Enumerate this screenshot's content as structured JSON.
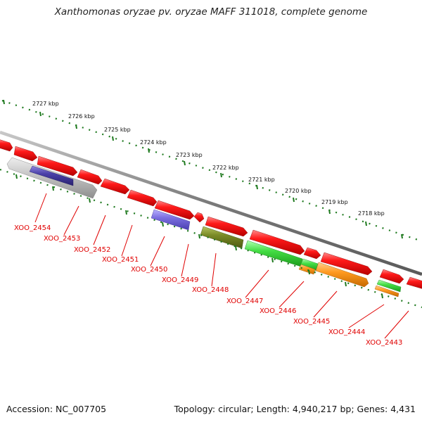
{
  "title": "Xanthomonas oryzae pv. oryzae MAFF 311018, complete genome",
  "footer": {
    "accession": "Accession: NC_007705",
    "summary": "Topology: circular; Length: 4,940,217 bp; Genes: 4,431"
  },
  "colors": {
    "backbone": "#808080",
    "scale": "#1f7a1f",
    "gene_label": "#e00000",
    "red": "#ff1010",
    "grey": "#c4c4c4",
    "navy": "#4a40a8",
    "blue": "#7b6fe0",
    "olive": "#7a8a26",
    "green": "#44dd44",
    "orange": "#ff9a20"
  },
  "scale_labels": [
    "2727 kbp",
    "2726 kbp",
    "2725 kbp",
    "2724 kbp",
    "2723 kbp",
    "2722 kbp",
    "2721 kbp",
    "2720 kbp",
    "2719 kbp",
    "2718 kbp"
  ],
  "gene_labels": [
    "XOO_2454",
    "XOO_2453",
    "XOO_2452",
    "XOO_2451",
    "XOO_2450",
    "XOO_2449",
    "XOO_2448",
    "XOO_2447",
    "XOO_2446",
    "XOO_2445",
    "XOO_2444",
    "XOO_2443"
  ]
}
